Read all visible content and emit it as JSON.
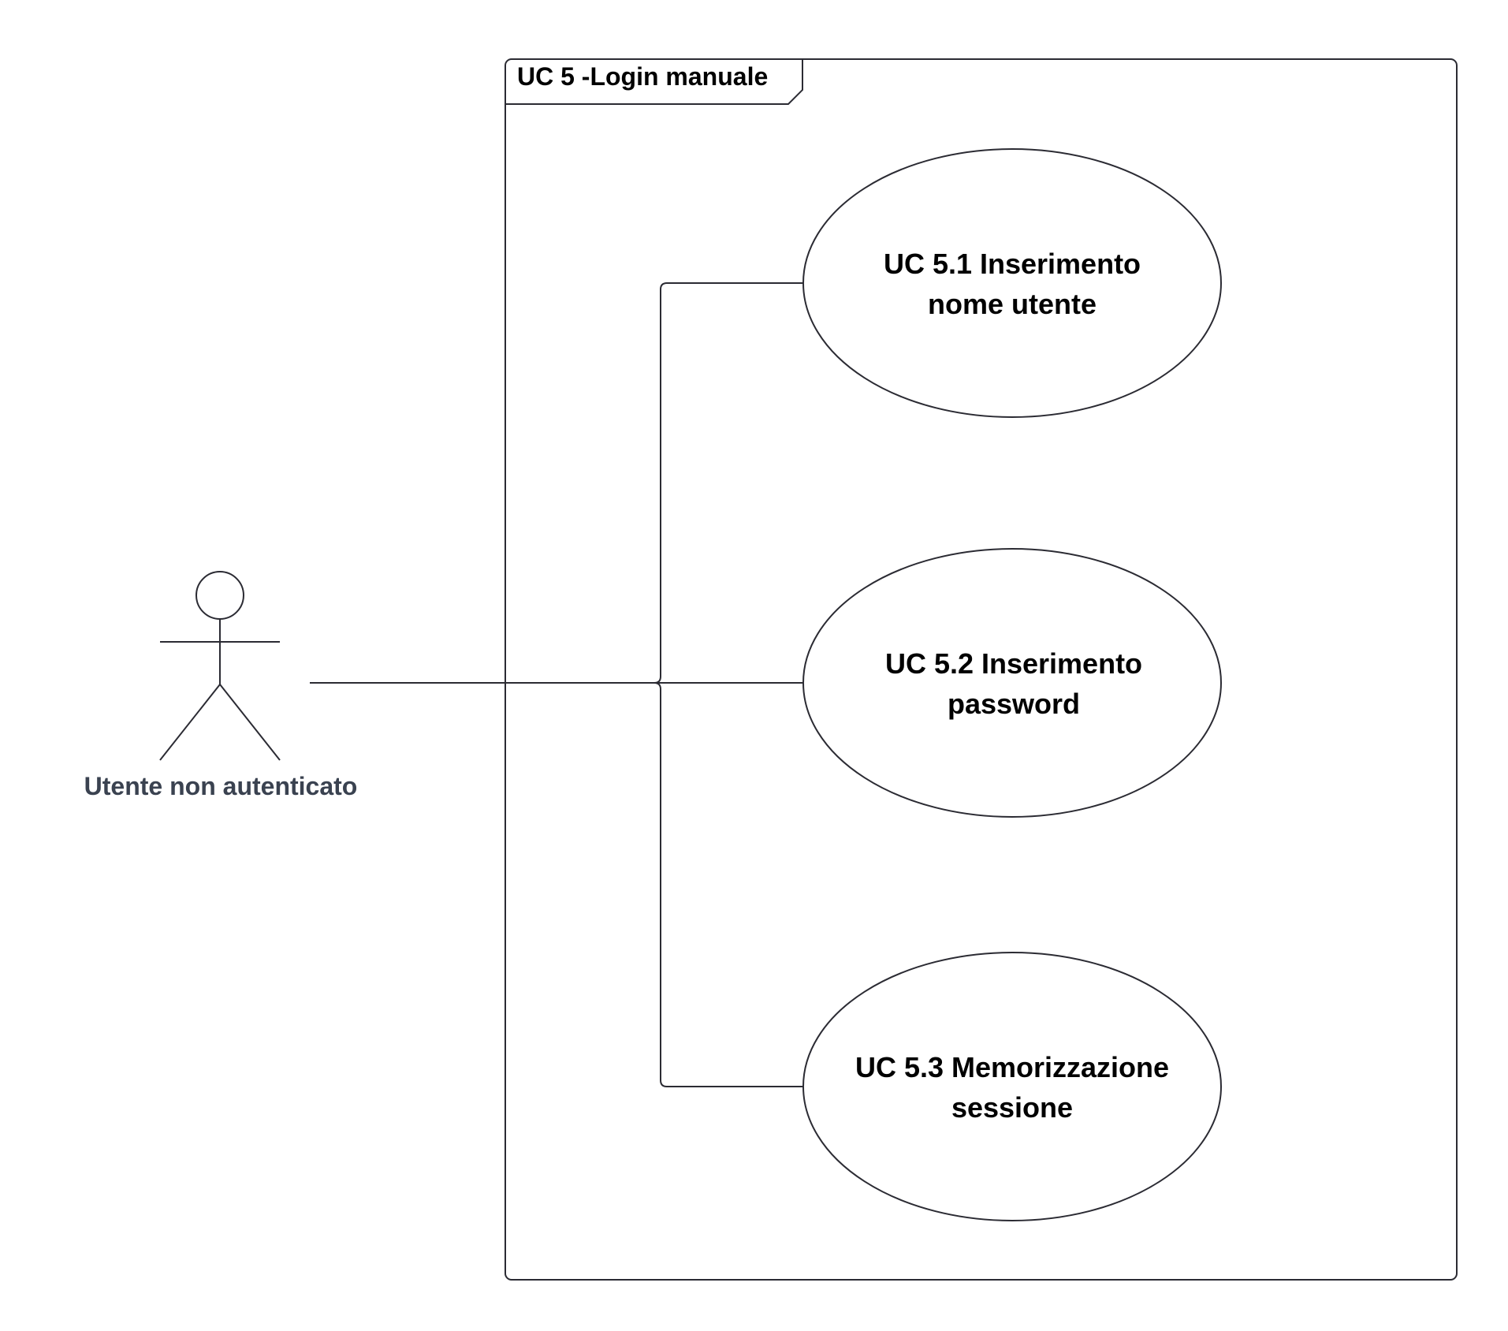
{
  "diagram": {
    "type": "uml-use-case",
    "system_boundary": {
      "title": "UC 5 -Login manuale"
    },
    "actor": {
      "name": "Utente  non autenticato"
    },
    "use_cases": [
      {
        "id": "UC 5.1",
        "lines": [
          "UC 5.1 Inserimento",
          "nome utente"
        ]
      },
      {
        "id": "UC 5.2",
        "lines": [
          "UC 5.2 Inserimento",
          "password"
        ]
      },
      {
        "id": "UC 5.3",
        "lines": [
          "UC 5.3 Memorizzazione",
          "sessione"
        ]
      }
    ],
    "colors": {
      "line": "#2b2b33",
      "actor_label": "#3a4250",
      "text": "#000000",
      "background": "#ffffff"
    }
  }
}
